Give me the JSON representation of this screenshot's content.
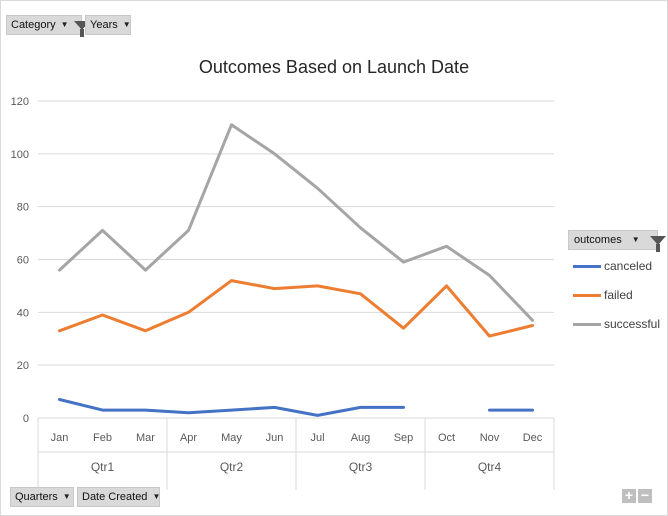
{
  "filters": {
    "category_label": "Category",
    "years_label": "Years",
    "quarters_label": "Quarters",
    "date_created_label": "Date Created",
    "outcomes_label": "outcomes"
  },
  "colors": {
    "canceled": "#4472c4",
    "failed": "#ed7d31",
    "successful": "#a5a5a5",
    "grid": "#d9d9d9",
    "text": "#595959"
  },
  "chart_data": {
    "type": "line",
    "title": "Outcomes Based on Launch Date",
    "categories": [
      "Jan",
      "Feb",
      "Mar",
      "Apr",
      "May",
      "Jun",
      "Jul",
      "Aug",
      "Sep",
      "Oct",
      "Nov",
      "Dec"
    ],
    "groups": [
      {
        "label": "Qtr1",
        "months": 3
      },
      {
        "label": "Qtr2",
        "months": 3
      },
      {
        "label": "Qtr3",
        "months": 3
      },
      {
        "label": "Qtr4",
        "months": 3
      }
    ],
    "ylim": [
      0,
      120
    ],
    "yticks": [
      0,
      20,
      40,
      60,
      80,
      100,
      120
    ],
    "grid": true,
    "legend_position": "right",
    "series": [
      {
        "name": "canceled",
        "color": "#4472c4",
        "values": [
          7,
          3,
          3,
          2,
          3,
          4,
          1,
          4,
          4,
          null,
          3,
          3
        ]
      },
      {
        "name": "failed",
        "color": "#ed7d31",
        "values": [
          33,
          39,
          33,
          40,
          52,
          49,
          50,
          47,
          34,
          50,
          31,
          35
        ]
      },
      {
        "name": "successful",
        "color": "#a5a5a5",
        "values": [
          56,
          71,
          56,
          71,
          111,
          100,
          87,
          72,
          59,
          65,
          54,
          37
        ]
      }
    ]
  },
  "controls": {
    "plus": "+",
    "minus": "−"
  }
}
